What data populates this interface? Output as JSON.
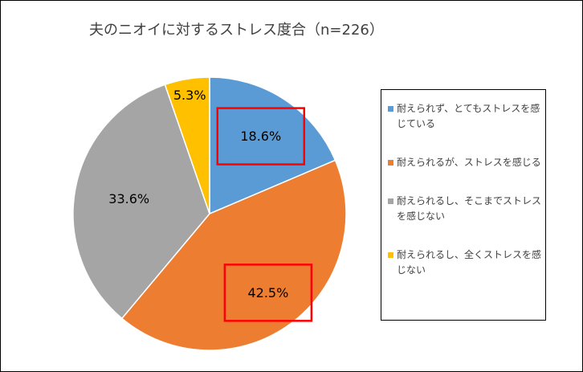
{
  "chart_data": {
    "type": "pie",
    "title": "夫のニオイに対するストレス度合（n=226）",
    "slices": [
      {
        "name": "耐えられず、とてもストレスを感じている",
        "value": 18.6,
        "label": "18.6%",
        "color": "#5B9BD5",
        "highlighted": true
      },
      {
        "name": "耐えられるが、ストレスを感じる",
        "value": 42.5,
        "label": "42.5%",
        "color": "#ED7D31",
        "highlighted": true
      },
      {
        "name": "耐えられるし、そこまでストレスを感じない",
        "value": 33.6,
        "label": "33.6%",
        "color": "#A5A5A5",
        "highlighted": false
      },
      {
        "name": "耐えられるし、全くストレスを感じない",
        "value": 5.3,
        "label": "5.3%",
        "color": "#FFC000",
        "highlighted": false
      }
    ],
    "legend_position": "right",
    "highlight_color": "#FF0000"
  }
}
